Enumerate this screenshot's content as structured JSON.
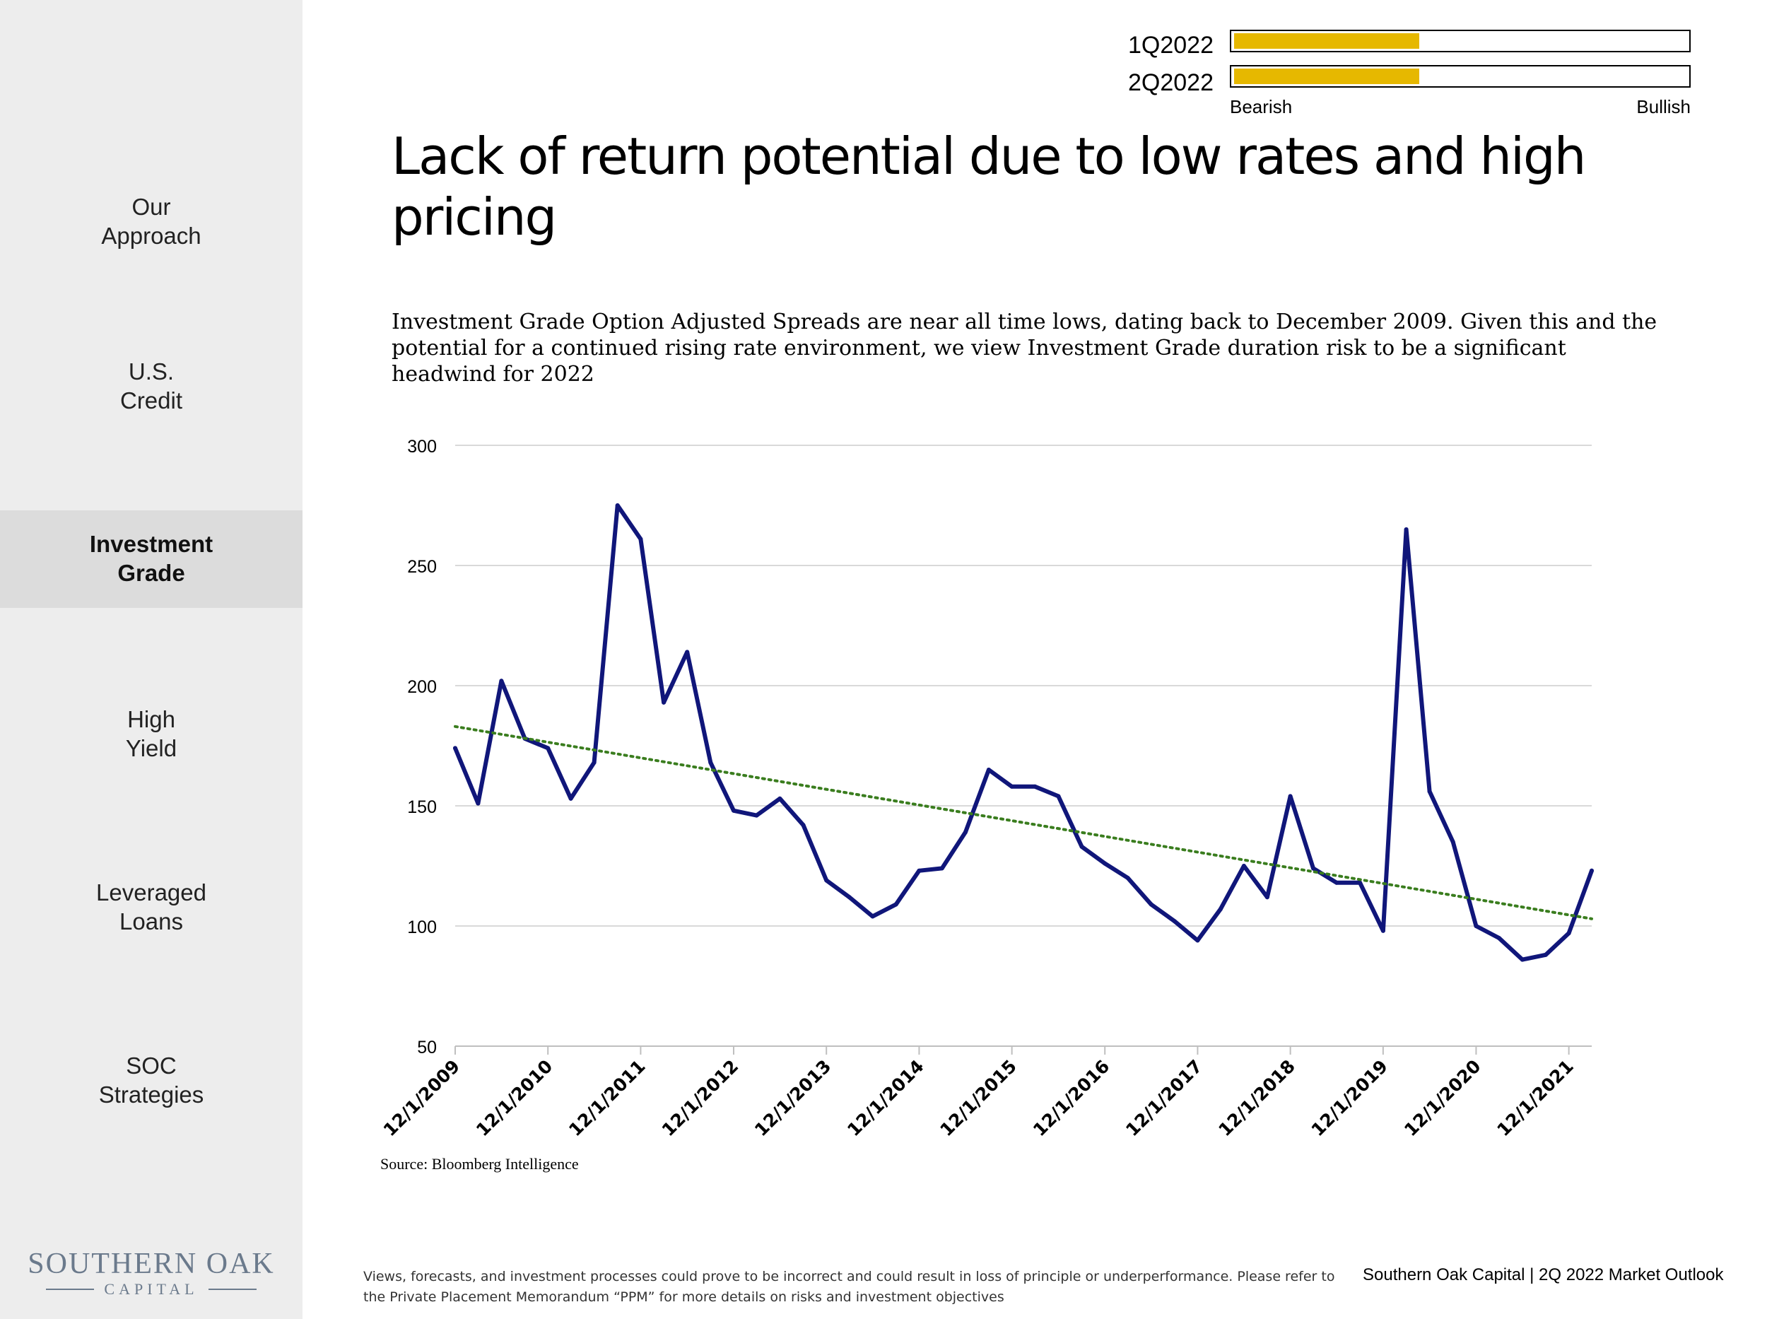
{
  "sidebar": {
    "items": [
      {
        "line1": "Our",
        "line2": "Approach",
        "active": false
      },
      {
        "line1": "U.S.",
        "line2": "Credit",
        "active": false
      },
      {
        "line1": "Investment",
        "line2": "Grade",
        "active": true
      },
      {
        "line1": "High",
        "line2": "Yield",
        "active": false
      },
      {
        "line1": "Leveraged",
        "line2": "Loans",
        "active": false
      },
      {
        "line1": "SOC",
        "line2": "Strategies",
        "active": false
      }
    ],
    "logo": {
      "line1": "SOUTHERN OAK",
      "line2": "CAPITAL"
    }
  },
  "outlook": {
    "rows": [
      {
        "label": "1Q2022",
        "level": 0.41
      },
      {
        "label": "2Q2022",
        "level": 0.41
      }
    ],
    "left_label": "Bearish",
    "right_label": "Bullish",
    "fill_color": "#e6b800"
  },
  "title": "Lack of return potential due to low rates and high pricing",
  "subtitle": "Investment Grade Option Adjusted Spreads are near all time lows, dating back to December 2009.  Given this and the potential for a continued rising rate environment, we view Investment Grade duration risk to be a significant headwind for 2022",
  "source": "Source: Bloomberg Intelligence",
  "disclaimer": "Views, forecasts, and investment processes could prove to be incorrect and could result in loss of principle or underperformance.  Please refer to the Private Placement Memorandum “PPM” for more details on risks and investment objectives",
  "footer_right": "Southern Oak Capital | 2Q 2022 Market Outlook",
  "chart_data": {
    "type": "line",
    "title": "",
    "xlabel": "",
    "ylabel": "",
    "ylim": [
      50,
      300
    ],
    "yticks": [
      50,
      100,
      150,
      200,
      250,
      300
    ],
    "xlim": [
      "2009-12-01",
      "2022-03-01"
    ],
    "x_tick_labels": [
      "12/1/2009",
      "12/1/2010",
      "12/1/2011",
      "12/1/2012",
      "12/1/2013",
      "12/1/2014",
      "12/1/2015",
      "12/1/2016",
      "12/1/2017",
      "12/1/2018",
      "12/1/2019",
      "12/1/2020",
      "12/1/2021"
    ],
    "grid": true,
    "legend": "none",
    "series": [
      {
        "color": "#10167a",
        "x": [
          "2009-12-01",
          "2010-03-01",
          "2010-06-01",
          "2010-09-01",
          "2010-12-01",
          "2011-03-01",
          "2011-06-01",
          "2011-09-01",
          "2011-12-01",
          "2012-03-01",
          "2012-06-01",
          "2012-09-01",
          "2012-12-01",
          "2013-03-01",
          "2013-06-01",
          "2013-09-01",
          "2013-12-01",
          "2014-03-01",
          "2014-06-01",
          "2014-09-01",
          "2014-12-01",
          "2015-03-01",
          "2015-06-01",
          "2015-09-01",
          "2015-12-01",
          "2016-03-01",
          "2016-06-01",
          "2016-09-01",
          "2016-12-01",
          "2017-03-01",
          "2017-06-01",
          "2017-09-01",
          "2017-12-01",
          "2018-03-01",
          "2018-06-01",
          "2018-09-01",
          "2018-12-01",
          "2019-03-01",
          "2019-06-01",
          "2019-09-01",
          "2019-12-01",
          "2020-03-01",
          "2020-06-01",
          "2020-09-01",
          "2020-12-01",
          "2021-03-01",
          "2021-06-01",
          "2021-09-01",
          "2021-12-01",
          "2022-03-01"
        ],
        "values": [
          174,
          151,
          202,
          178,
          174,
          153,
          168,
          275,
          261,
          193,
          214,
          168,
          148,
          146,
          153,
          142,
          119,
          112,
          104,
          109,
          123,
          124,
          139,
          165,
          158,
          158,
          154,
          133,
          126,
          120,
          109,
          102,
          94,
          107,
          125,
          112,
          154,
          124,
          118,
          118,
          98,
          265,
          156,
          135,
          100,
          95,
          86,
          88,
          97,
          123
        ]
      },
      {
        "type": "trendline",
        "style": "dotted",
        "color": "#3a7d1e",
        "x": [
          "2009-12-01",
          "2022-03-01"
        ],
        "values": [
          183,
          103
        ]
      }
    ]
  }
}
